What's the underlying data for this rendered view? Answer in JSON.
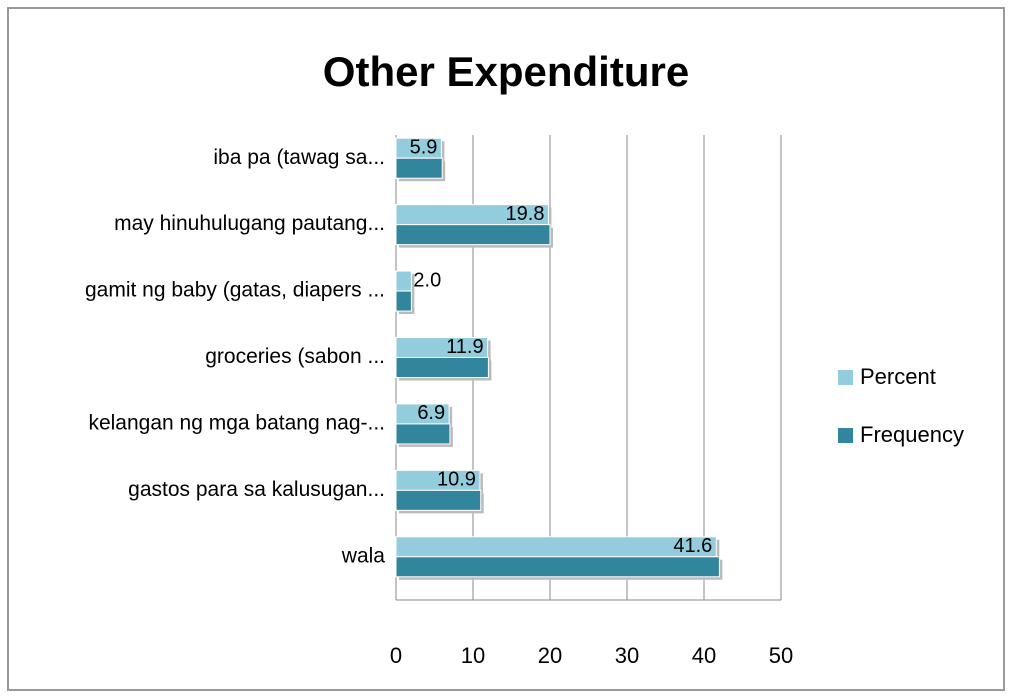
{
  "chart_data": {
    "type": "bar",
    "orientation": "horizontal",
    "title": "Other Expenditure",
    "categories": [
      "wala",
      "gastos para sa kalusugan...",
      "kelangan ng mga batang nag-...",
      "groceries (sabon ...",
      "gamit ng baby (gatas, diapers ...",
      "may hinuhulugang pautang...",
      "iba pa (tawag sa..."
    ],
    "series": [
      {
        "name": "Percent",
        "color": "#93cddd",
        "values": [
          41.6,
          10.9,
          6.9,
          11.9,
          2,
          19.8,
          5.9
        ],
        "value_labels": [
          "41.6",
          "10.9",
          "6.9",
          "11.9",
          "2.0",
          "19.8",
          "5.9"
        ]
      },
      {
        "name": "Frequency",
        "color": "#31859c",
        "values": [
          42,
          11,
          7,
          12,
          2,
          20,
          6
        ]
      }
    ],
    "xlim": [
      0,
      50
    ],
    "xticks": [
      0,
      10,
      20,
      30,
      40,
      50
    ],
    "grid": true,
    "legend": "right"
  }
}
